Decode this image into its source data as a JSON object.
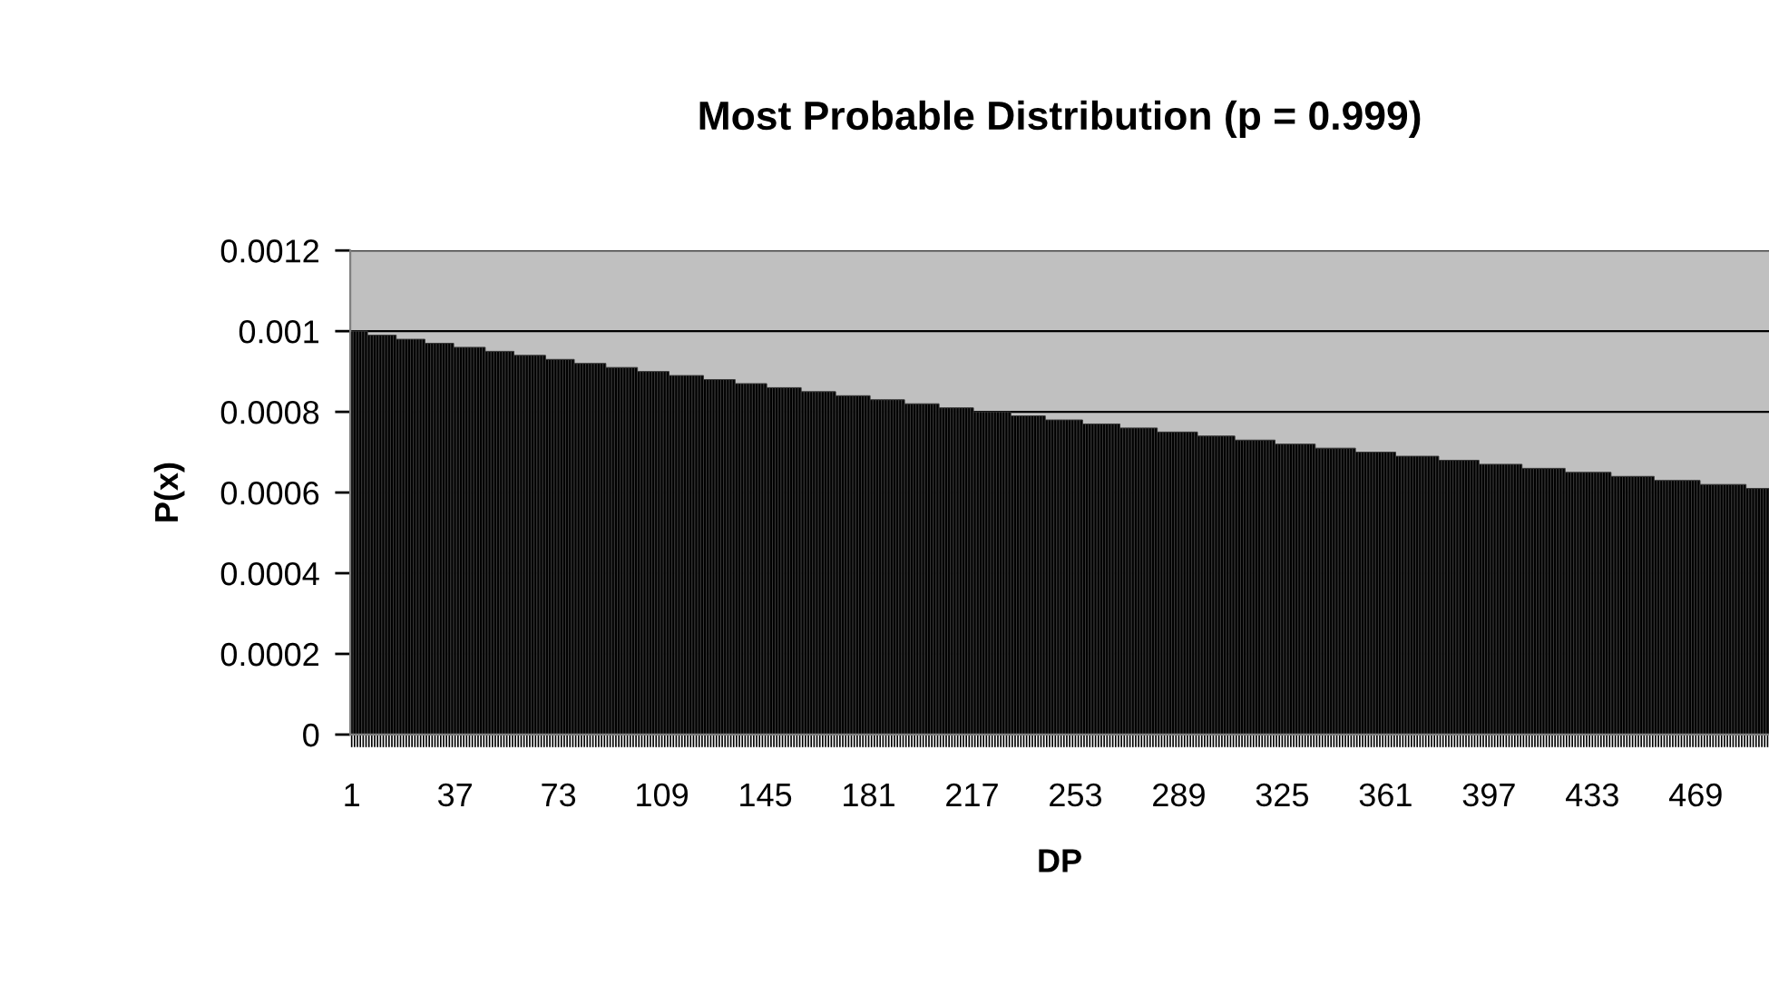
{
  "chart_data": {
    "type": "bar",
    "title": "Most Probable Distribution (p = 0.999)",
    "xlabel": "DP",
    "ylabel": "P(x)",
    "ylim": [
      0,
      0.0012
    ],
    "yticks": [
      0,
      0.0002,
      0.0004,
      0.0006,
      0.0008,
      0.001,
      0.0012
    ],
    "grid": "y",
    "categories": [
      "1",
      null,
      null,
      null,
      null,
      null,
      null,
      null,
      null,
      null,
      null,
      null,
      null,
      null,
      null,
      null,
      null,
      null,
      null,
      null,
      null,
      null,
      null,
      null,
      null,
      null,
      null,
      null,
      null,
      null,
      null,
      null,
      null,
      null,
      null,
      null,
      "37",
      null,
      null,
      null,
      null,
      null,
      null,
      null,
      null,
      null,
      null,
      null,
      null,
      null,
      null,
      null,
      null,
      null,
      null,
      null,
      null,
      null,
      null,
      null,
      null,
      null,
      null,
      null,
      null,
      null,
      null,
      null,
      null,
      null,
      null,
      null,
      "73",
      null,
      null,
      null,
      null,
      null,
      null,
      null,
      null,
      null,
      null,
      null,
      null,
      null,
      null,
      null,
      null,
      null,
      null,
      null,
      null,
      null,
      null,
      null,
      null,
      null,
      null,
      null,
      null,
      null,
      null,
      null,
      null,
      null,
      null,
      null,
      "109",
      null,
      null,
      null,
      null,
      null,
      null,
      null,
      null,
      null,
      null,
      null,
      null,
      null,
      null,
      null,
      null,
      null,
      null,
      null,
      null,
      null,
      null,
      null,
      null,
      null,
      null,
      null,
      null,
      null,
      null,
      null,
      null,
      null,
      null,
      null,
      "145",
      null,
      null,
      null,
      null,
      null,
      null,
      null,
      null,
      null,
      null,
      null,
      null,
      null,
      null,
      null,
      null,
      null,
      null,
      null,
      null,
      null,
      null,
      null,
      null,
      null,
      null,
      null,
      null,
      null,
      null,
      null,
      null,
      null,
      null,
      null,
      "181",
      null,
      null,
      null,
      null,
      null,
      null,
      null,
      null,
      null,
      null,
      null,
      null,
      null,
      null,
      null,
      null,
      null,
      null,
      null,
      null,
      null,
      null,
      null,
      null,
      null,
      null,
      null,
      null,
      null,
      null,
      null,
      null,
      null,
      null,
      null,
      "217",
      null,
      null,
      null,
      null,
      null,
      null,
      null,
      null,
      null,
      null,
      null,
      null,
      null,
      null,
      null,
      null,
      null,
      null,
      null,
      null,
      null,
      null,
      null,
      null,
      null,
      null,
      null,
      null,
      null,
      null,
      null,
      null,
      null,
      null,
      null,
      "253",
      null,
      null,
      null,
      null,
      null,
      null,
      null,
      null,
      null,
      null,
      null,
      null,
      null,
      null,
      null,
      null,
      null,
      null,
      null,
      null,
      null,
      null,
      null,
      null,
      null,
      null,
      null,
      null,
      null,
      null,
      null,
      null,
      null,
      null,
      null,
      "289",
      null,
      null,
      null,
      null,
      null,
      null,
      null,
      null,
      null,
      null,
      null,
      null,
      null,
      null,
      null,
      null,
      null,
      null,
      null,
      null,
      null,
      null,
      null,
      null,
      null,
      null,
      null,
      null,
      null,
      null,
      null,
      null,
      null,
      null,
      null,
      "325",
      null,
      null,
      null,
      null,
      null,
      null,
      null,
      null,
      null,
      null,
      null,
      null,
      null,
      null,
      null,
      null,
      null,
      null,
      null,
      null,
      null,
      null,
      null,
      null,
      null,
      null,
      null,
      null,
      null,
      null,
      null,
      null,
      null,
      null,
      null,
      "361",
      null,
      null,
      null,
      null,
      null,
      null,
      null,
      null,
      null,
      null,
      null,
      null,
      null,
      null,
      null,
      null,
      null,
      null,
      null,
      null,
      null,
      null,
      null,
      null,
      null,
      null,
      null,
      null,
      null,
      null,
      null,
      null,
      null,
      null,
      null,
      "397",
      null,
      null,
      null,
      null,
      null,
      null,
      null,
      null,
      null,
      null,
      null,
      null,
      null,
      null,
      null,
      null,
      null,
      null,
      null,
      null,
      null,
      null,
      null,
      null,
      null,
      null,
      null,
      null,
      null,
      null,
      null,
      null,
      null,
      null,
      null,
      "433",
      null,
      null,
      null,
      null,
      null,
      null,
      null,
      null,
      null,
      null,
      null,
      null,
      null,
      null,
      null,
      null,
      null,
      null,
      null,
      null,
      null,
      null,
      null,
      null,
      null,
      null,
      null,
      null,
      null,
      null,
      null,
      null,
      null,
      null,
      null,
      "469",
      null,
      null,
      null,
      null,
      null,
      null,
      null,
      null,
      null,
      null,
      null,
      null,
      null,
      null,
      null,
      null,
      null,
      null,
      null,
      null,
      null,
      null,
      null,
      null,
      null
    ],
    "series": [
      {
        "color": "#000000",
        "values": [
          0.001,
          0.001,
          0.001,
          0.001,
          0.001,
          0.001,
          0.00099,
          0.00099,
          0.00099,
          0.00099,
          0.00099,
          0.00099,
          0.00099,
          0.00099,
          0.00099,
          0.00099,
          0.00098,
          0.00098,
          0.00098,
          0.00098,
          0.00098,
          0.00098,
          0.00098,
          0.00098,
          0.00098,
          0.00098,
          0.00097,
          0.00097,
          0.00097,
          0.00097,
          0.00097,
          0.00097,
          0.00097,
          0.00097,
          0.00097,
          0.00097,
          0.00096,
          0.00096,
          0.00096,
          0.00096,
          0.00096,
          0.00096,
          0.00096,
          0.00096,
          0.00096,
          0.00096,
          0.00096,
          0.00095,
          0.00095,
          0.00095,
          0.00095,
          0.00095,
          0.00095,
          0.00095,
          0.00095,
          0.00095,
          0.00095,
          0.00094,
          0.00094,
          0.00094,
          0.00094,
          0.00094,
          0.00094,
          0.00094,
          0.00094,
          0.00094,
          0.00094,
          0.00094,
          0.00093,
          0.00093,
          0.00093,
          0.00093,
          0.00093,
          0.00093,
          0.00093,
          0.00093,
          0.00093,
          0.00093,
          0.00092,
          0.00092,
          0.00092,
          0.00092,
          0.00092,
          0.00092,
          0.00092,
          0.00092,
          0.00092,
          0.00092,
          0.00092,
          0.00091,
          0.00091,
          0.00091,
          0.00091,
          0.00091,
          0.00091,
          0.00091,
          0.00091,
          0.00091,
          0.00091,
          0.00091,
          0.0009,
          0.0009,
          0.0009,
          0.0009,
          0.0009,
          0.0009,
          0.0009,
          0.0009,
          0.0009,
          0.0009,
          0.0009,
          0.00089,
          0.00089,
          0.00089,
          0.00089,
          0.00089,
          0.00089,
          0.00089,
          0.00089,
          0.00089,
          0.00089,
          0.00089,
          0.00089,
          0.00088,
          0.00088,
          0.00088,
          0.00088,
          0.00088,
          0.00088,
          0.00088,
          0.00088,
          0.00088,
          0.00088,
          0.00088,
          0.00087,
          0.00087,
          0.00087,
          0.00087,
          0.00087,
          0.00087,
          0.00087,
          0.00087,
          0.00087,
          0.00087,
          0.00087,
          0.00086,
          0.00086,
          0.00086,
          0.00086,
          0.00086,
          0.00086,
          0.00086,
          0.00086,
          0.00086,
          0.00086,
          0.00086,
          0.00086,
          0.00085,
          0.00085,
          0.00085,
          0.00085,
          0.00085,
          0.00085,
          0.00085,
          0.00085,
          0.00085,
          0.00085,
          0.00085,
          0.00085,
          0.00084,
          0.00084,
          0.00084,
          0.00084,
          0.00084,
          0.00084,
          0.00084,
          0.00084,
          0.00084,
          0.00084,
          0.00084,
          0.00084,
          0.00083,
          0.00083,
          0.00083,
          0.00083,
          0.00083,
          0.00083,
          0.00083,
          0.00083,
          0.00083,
          0.00083,
          0.00083,
          0.00083,
          0.00082,
          0.00082,
          0.00082,
          0.00082,
          0.00082,
          0.00082,
          0.00082,
          0.00082,
          0.00082,
          0.00082,
          0.00082,
          0.00082,
          0.00081,
          0.00081,
          0.00081,
          0.00081,
          0.00081,
          0.00081,
          0.00081,
          0.00081,
          0.00081,
          0.00081,
          0.00081,
          0.00081,
          0.0008,
          0.0008,
          0.0008,
          0.0008,
          0.0008,
          0.0008,
          0.0008,
          0.0008,
          0.0008,
          0.0008,
          0.0008,
          0.0008,
          0.0008,
          0.00079,
          0.00079,
          0.00079,
          0.00079,
          0.00079,
          0.00079,
          0.00079,
          0.00079,
          0.00079,
          0.00079,
          0.00079,
          0.00079,
          0.00078,
          0.00078,
          0.00078,
          0.00078,
          0.00078,
          0.00078,
          0.00078,
          0.00078,
          0.00078,
          0.00078,
          0.00078,
          0.00078,
          0.00078,
          0.00077,
          0.00077,
          0.00077,
          0.00077,
          0.00077,
          0.00077,
          0.00077,
          0.00077,
          0.00077,
          0.00077,
          0.00077,
          0.00077,
          0.00077,
          0.00076,
          0.00076,
          0.00076,
          0.00076,
          0.00076,
          0.00076,
          0.00076,
          0.00076,
          0.00076,
          0.00076,
          0.00076,
          0.00076,
          0.00076,
          0.00075,
          0.00075,
          0.00075,
          0.00075,
          0.00075,
          0.00075,
          0.00075,
          0.00075,
          0.00075,
          0.00075,
          0.00075,
          0.00075,
          0.00075,
          0.00075,
          0.00074,
          0.00074,
          0.00074,
          0.00074,
          0.00074,
          0.00074,
          0.00074,
          0.00074,
          0.00074,
          0.00074,
          0.00074,
          0.00074,
          0.00074,
          0.00073,
          0.00073,
          0.00073,
          0.00073,
          0.00073,
          0.00073,
          0.00073,
          0.00073,
          0.00073,
          0.00073,
          0.00073,
          0.00073,
          0.00073,
          0.00073,
          0.00072,
          0.00072,
          0.00072,
          0.00072,
          0.00072,
          0.00072,
          0.00072,
          0.00072,
          0.00072,
          0.00072,
          0.00072,
          0.00072,
          0.00072,
          0.00072,
          0.00071,
          0.00071,
          0.00071,
          0.00071,
          0.00071,
          0.00071,
          0.00071,
          0.00071,
          0.00071,
          0.00071,
          0.00071,
          0.00071,
          0.00071,
          0.00071,
          0.0007,
          0.0007,
          0.0007,
          0.0007,
          0.0007,
          0.0007,
          0.0007,
          0.0007,
          0.0007,
          0.0007,
          0.0007,
          0.0007,
          0.0007,
          0.0007,
          0.00069,
          0.00069,
          0.00069,
          0.00069,
          0.00069,
          0.00069,
          0.00069,
          0.00069,
          0.00069,
          0.00069,
          0.00069,
          0.00069,
          0.00069,
          0.00069,
          0.00069,
          0.00068,
          0.00068,
          0.00068,
          0.00068,
          0.00068,
          0.00068,
          0.00068,
          0.00068,
          0.00068,
          0.00068,
          0.00068,
          0.00068,
          0.00068,
          0.00068,
          0.00067,
          0.00067,
          0.00067,
          0.00067,
          0.00067,
          0.00067,
          0.00067,
          0.00067,
          0.00067,
          0.00067,
          0.00067,
          0.00067,
          0.00067,
          0.00067,
          0.00067,
          0.00066,
          0.00066,
          0.00066,
          0.00066,
          0.00066,
          0.00066,
          0.00066,
          0.00066,
          0.00066,
          0.00066,
          0.00066,
          0.00066,
          0.00066,
          0.00066,
          0.00066,
          0.00065,
          0.00065,
          0.00065,
          0.00065,
          0.00065,
          0.00065,
          0.00065,
          0.00065,
          0.00065,
          0.00065,
          0.00065,
          0.00065,
          0.00065,
          0.00065,
          0.00065,
          0.00065,
          0.00064,
          0.00064,
          0.00064,
          0.00064,
          0.00064,
          0.00064,
          0.00064,
          0.00064,
          0.00064,
          0.00064,
          0.00064,
          0.00064,
          0.00064,
          0.00064,
          0.00064,
          0.00063,
          0.00063,
          0.00063,
          0.00063,
          0.00063,
          0.00063,
          0.00063,
          0.00063,
          0.00063,
          0.00063,
          0.00063,
          0.00063,
          0.00063,
          0.00063,
          0.00063,
          0.00063,
          0.00062,
          0.00062,
          0.00062,
          0.00062,
          0.00062,
          0.00062,
          0.00062,
          0.00062,
          0.00062,
          0.00062,
          0.00062,
          0.00062,
          0.00062,
          0.00062,
          0.00062,
          0.00062,
          0.00061,
          0.00061,
          0.00061,
          0.00061,
          0.00061,
          0.00061,
          0.00061,
          0.00061
        ]
      }
    ]
  }
}
